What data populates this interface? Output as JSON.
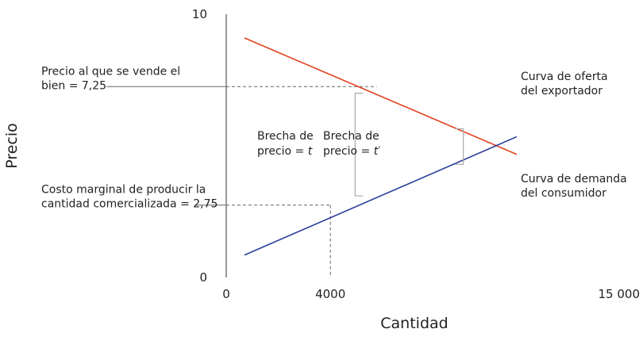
{
  "chart_data": {
    "type": "line",
    "xlabel": "Cantidad",
    "ylabel": "Precio",
    "xlim": [
      0,
      15000
    ],
    "ylim": [
      0,
      10
    ],
    "x_ticks": [
      {
        "value": 0,
        "label": "0"
      },
      {
        "value": 4000,
        "label": "4000"
      },
      {
        "value": 15000,
        "label": "15 000"
      }
    ],
    "y_ticks": [
      {
        "value": 0,
        "label": "0"
      },
      {
        "value": 10,
        "label": "10"
      }
    ],
    "grid": false,
    "series": [
      {
        "key": "demanda",
        "color": "#e3411e",
        "points": [
          [
            700,
            9.1
          ],
          [
            15000,
            3.05
          ]
        ],
        "label": [
          "Curva de demanda",
          "del consumidor"
        ]
      },
      {
        "key": "oferta",
        "color": "#2b3e9c",
        "points": [
          [
            700,
            0.85
          ],
          [
            15000,
            7.0
          ]
        ],
        "label": [
          "Curva de oferta",
          "del exportador"
        ]
      }
    ],
    "reference_lines": [
      {
        "key": "precio-venta",
        "y": 7.25,
        "x_to": 5780,
        "label": [
          "Precio al que se vende el",
          "bien = 7,25"
        ]
      },
      {
        "key": "costo-marginal",
        "y": 2.75,
        "x_to": 4000,
        "label": [
          "Costo marginal de producir la",
          "cantidad comercializada = 2,75"
        ]
      }
    ],
    "vertical_reference": {
      "x": 4000,
      "y_from": 0,
      "y_to": 2.75
    },
    "brackets": [
      {
        "key": "brecha-t",
        "x": 4950,
        "y_from": 3.1,
        "y_to": 7.0,
        "label": [
          "Brecha de",
          "precio = ",
          "t",
          ""
        ]
      },
      {
        "key": "brecha-t-prima",
        "x": 8800,
        "y_from": 4.3,
        "y_to": 5.65,
        "label": [
          "Brecha de",
          "precio = ",
          "t",
          "′"
        ]
      }
    ]
  }
}
